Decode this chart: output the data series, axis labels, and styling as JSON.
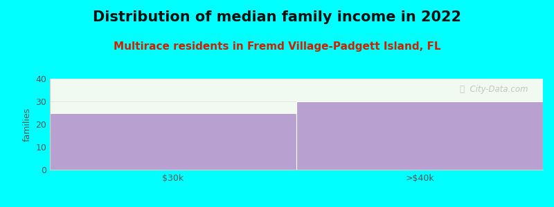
{
  "title": "Distribution of median family income in 2022",
  "subtitle": "Multirace residents in Fremd Village-Padgett Island, FL",
  "categories": [
    "$30k",
    ">$40k"
  ],
  "values": [
    25,
    30
  ],
  "bar_color": "#b8a0d0",
  "plot_bg_color": "#f0faf0",
  "figure_bg_color": "#00ffff",
  "ylabel": "families",
  "ylim": [
    0,
    40
  ],
  "yticks": [
    0,
    10,
    20,
    30,
    40
  ],
  "title_fontsize": 15,
  "subtitle_fontsize": 11,
  "subtitle_color": "#cc2200",
  "tick_label_color": "#555555",
  "watermark_text": "ⓘ  City-Data.com",
  "watermark_color": "#bbbbbb",
  "bar_edge_color": "#ffffff",
  "spine_color": "#cccccc"
}
